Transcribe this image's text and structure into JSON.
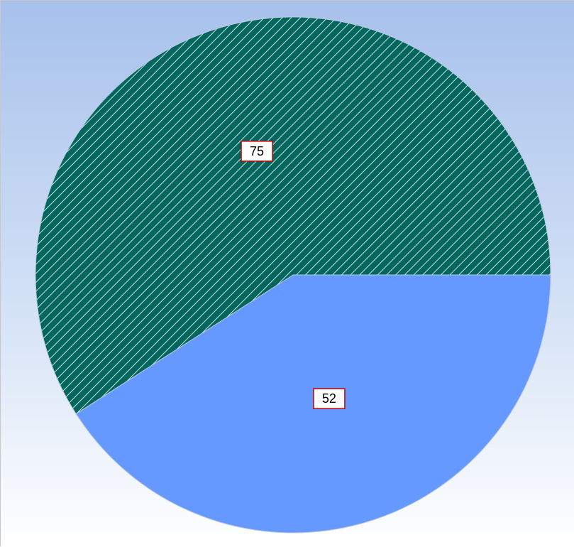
{
  "chart_data": {
    "type": "pie",
    "title": "",
    "start_angle_deg": 0,
    "direction": "clockwise",
    "slices": [
      {
        "value": 52,
        "label": "52",
        "color": "#6699ff",
        "pattern": "none"
      },
      {
        "value": 75,
        "label": "75",
        "color": "#00665e",
        "pattern": "diagonal-hatch",
        "hatch_color": "#cfe3e0"
      }
    ],
    "legend": "none",
    "data_label_border_color": "#c00000",
    "background_gradient": [
      "#a7c1eb",
      "#ffffff"
    ]
  }
}
